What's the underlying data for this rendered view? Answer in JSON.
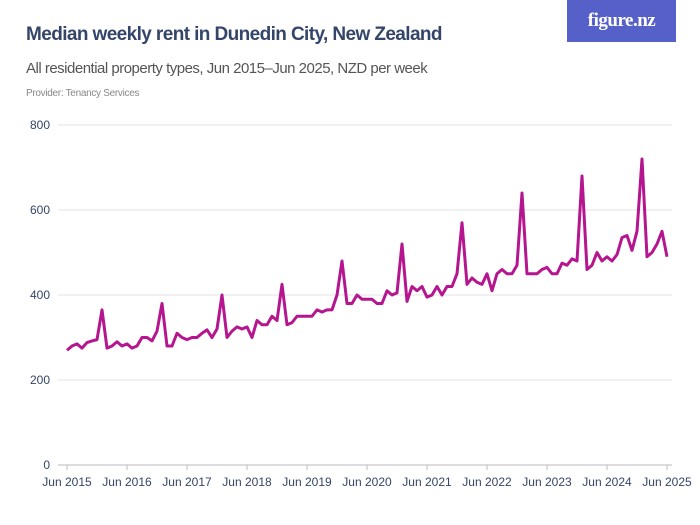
{
  "header": {
    "title": "Median weekly rent in Dunedin City, New Zealand",
    "subtitle": "All residential property types, Jun 2015–Jun 2025, NZD per week",
    "provider": "Provider: Tenancy Services",
    "logo": "figure.nz"
  },
  "colors": {
    "line": "#b5168f",
    "title": "#34456a",
    "logo_bg": "#5561c9",
    "grid": "#e3e3e3"
  },
  "chart_data": {
    "type": "line",
    "title": "Median weekly rent in Dunedin City, New Zealand",
    "xlabel": "",
    "ylabel": "",
    "ylim": [
      0,
      800
    ],
    "yticks": [
      0,
      200,
      400,
      600,
      800
    ],
    "xticks": [
      "Jun 2015",
      "Jun 2016",
      "Jun 2017",
      "Jun 2018",
      "Jun 2019",
      "Jun 2020",
      "Jun 2021",
      "Jun 2022",
      "Jun 2023",
      "Jun 2024",
      "Jun 2025"
    ],
    "x_start": "Jun 2015",
    "x_end": "Jun 2025",
    "frequency": "monthly",
    "grid": true,
    "series": [
      {
        "values": [
          270,
          280,
          285,
          275,
          288,
          292,
          295,
          365,
          275,
          280,
          290,
          280,
          285,
          275,
          280,
          300,
          300,
          292,
          315,
          380,
          280,
          280,
          310,
          300,
          295,
          300,
          300,
          310,
          318,
          300,
          320,
          400,
          300,
          315,
          325,
          320,
          325,
          300,
          340,
          330,
          330,
          350,
          340,
          425,
          330,
          335,
          350,
          350,
          350,
          350,
          365,
          360,
          365,
          365,
          400,
          480,
          380,
          380,
          400,
          390,
          390,
          390,
          380,
          380,
          410,
          400,
          405,
          520,
          385,
          420,
          410,
          420,
          395,
          400,
          420,
          400,
          420,
          420,
          450,
          570,
          425,
          440,
          430,
          425,
          450,
          410,
          450,
          460,
          450,
          450,
          470,
          640,
          450,
          450,
          450,
          460,
          465,
          450,
          450,
          475,
          470,
          485,
          480,
          680,
          460,
          470,
          500,
          480,
          490,
          480,
          495,
          535,
          540,
          505,
          550,
          720,
          490,
          500,
          520,
          550,
          490
        ]
      }
    ]
  }
}
